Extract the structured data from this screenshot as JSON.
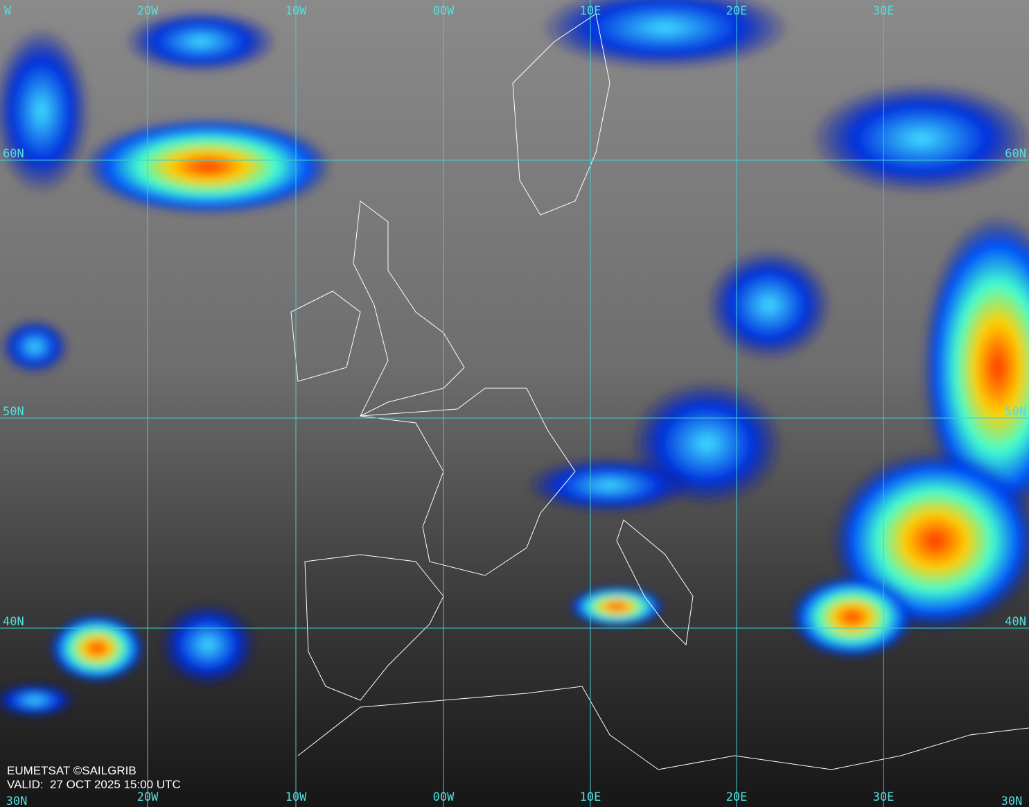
{
  "map": {
    "top_labels": [
      "W",
      "20W",
      "10W",
      "00W",
      "10E",
      "20E",
      "30E"
    ],
    "bottom_labels": [
      "30N",
      "20W",
      "10W",
      "00W",
      "10E",
      "20E",
      "30E",
      "30N"
    ],
    "left_labels": [
      "60N",
      "50N",
      "40N"
    ],
    "right_labels": [
      "60N",
      "50N",
      "40N"
    ],
    "credit": {
      "source": "EUMETSAT ©SAILGRIB",
      "valid": "VALID:  27 OCT 2025 15:00 UTC"
    }
  }
}
